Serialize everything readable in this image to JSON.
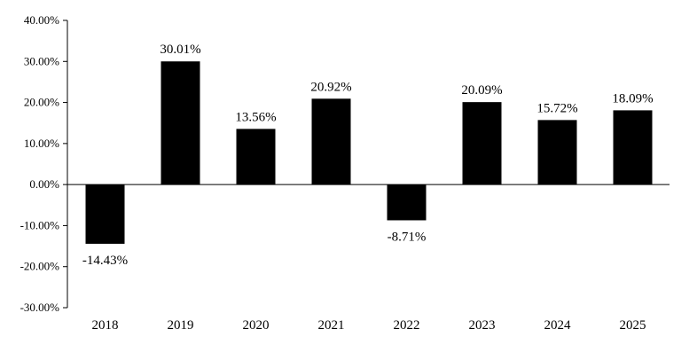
{
  "chart_data": {
    "type": "bar",
    "categories": [
      "2018",
      "2019",
      "2020",
      "2021",
      "2022",
      "2023",
      "2024",
      "2025"
    ],
    "values": [
      -14.43,
      30.01,
      13.56,
      20.92,
      -8.71,
      20.09,
      15.72,
      18.09
    ],
    "data_labels": [
      "-14.43%",
      "30.01%",
      "13.56%",
      "20.92%",
      "-8.71%",
      "20.09%",
      "15.72%",
      "18.09%"
    ],
    "ylim": [
      -30,
      40
    ],
    "yticks": [
      40,
      30,
      20,
      10,
      0,
      -10,
      -20,
      -30
    ],
    "ytick_labels": [
      "40.00%",
      "30.00%",
      "20.00%",
      "10.00%",
      "0.00%",
      "-10.00%",
      "-20.00%",
      "-30.00%"
    ],
    "grid": false,
    "legend": "none",
    "bar_color": "#000000"
  }
}
